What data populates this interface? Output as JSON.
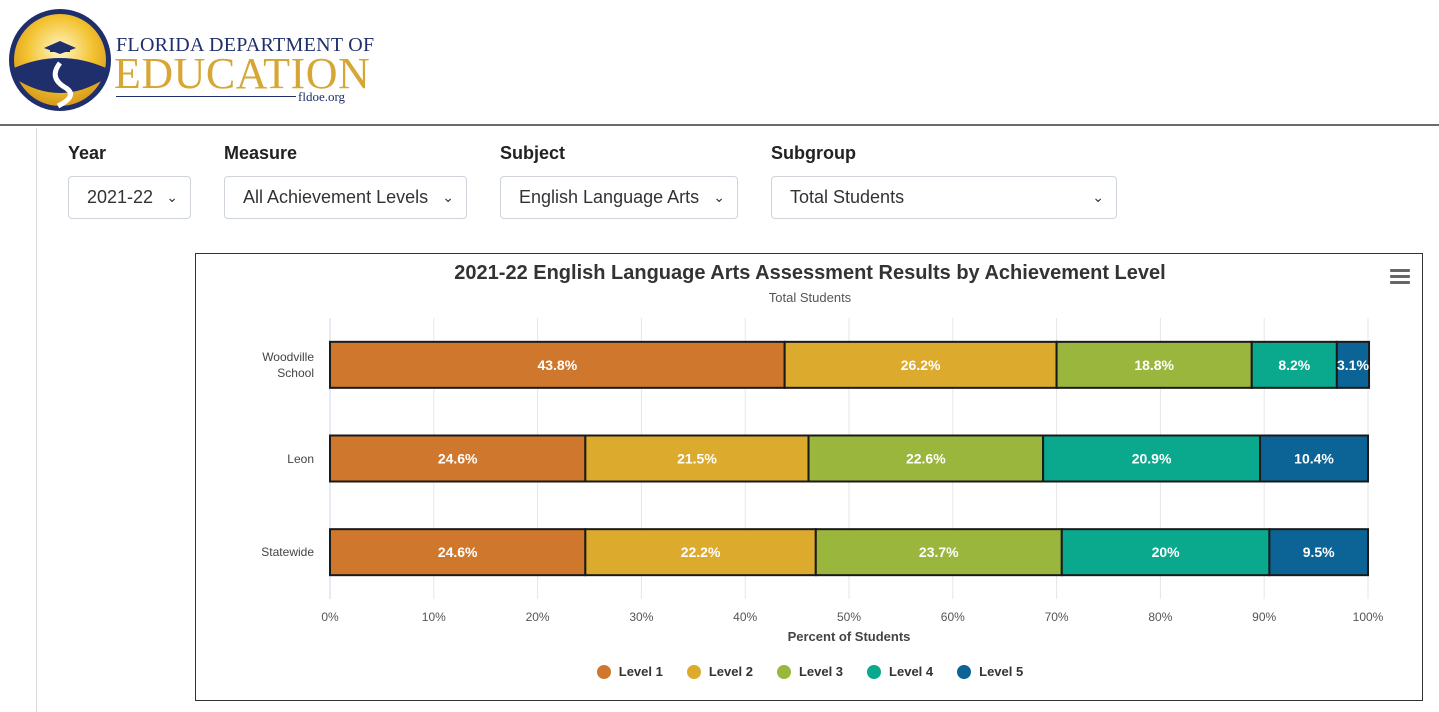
{
  "header": {
    "logo_line1": "Florida Department of",
    "logo_line2": "EDUCATION",
    "logo_url": "fldoe.org"
  },
  "filters": [
    {
      "label": "Year",
      "value": "2021-22"
    },
    {
      "label": "Measure",
      "value": "All Achievement Levels"
    },
    {
      "label": "Subject",
      "value": "English Language Arts"
    },
    {
      "label": "Subgroup",
      "value": "Total Students"
    }
  ],
  "icons": {
    "dropdown": "chevron-down-icon",
    "chart_menu": "hamburger-menu-icon"
  },
  "chart_data": {
    "type": "bar",
    "orientation": "horizontal",
    "stacked": "percent",
    "title": "2021-22 English Language Arts Assessment Results by Achievement Level",
    "subtitle": "Total Students",
    "xlabel": "Percent of Students",
    "ylabel": "",
    "xlim": [
      0,
      100
    ],
    "x_ticks": [
      "0%",
      "10%",
      "20%",
      "30%",
      "40%",
      "50%",
      "60%",
      "70%",
      "80%",
      "90%",
      "100%"
    ],
    "categories": [
      "Woodville School",
      "Leon",
      "Statewide"
    ],
    "series": [
      {
        "name": "Level 1",
        "color": "#cf782d",
        "values": [
          43.8,
          24.6,
          24.6
        ],
        "labels": [
          "43.8%",
          "24.6%",
          "24.6%"
        ]
      },
      {
        "name": "Level 2",
        "color": "#dcaa2d",
        "values": [
          26.2,
          21.5,
          22.2
        ],
        "labels": [
          "26.2%",
          "21.5%",
          "22.2%"
        ]
      },
      {
        "name": "Level 3",
        "color": "#9bb63c",
        "values": [
          18.8,
          22.6,
          23.7
        ],
        "labels": [
          "18.8%",
          "22.6%",
          "23.7%"
        ]
      },
      {
        "name": "Level 4",
        "color": "#0aa88c",
        "values": [
          8.2,
          20.9,
          20.0
        ],
        "labels": [
          "8.2%",
          "20.9%",
          "20%"
        ]
      },
      {
        "name": "Level 5",
        "color": "#0c6496",
        "values": [
          3.1,
          10.4,
          9.5
        ],
        "labels": [
          "3.1%",
          "10.4%",
          "9.5%"
        ]
      }
    ],
    "grid": true,
    "legend_position": "bottom-center"
  }
}
